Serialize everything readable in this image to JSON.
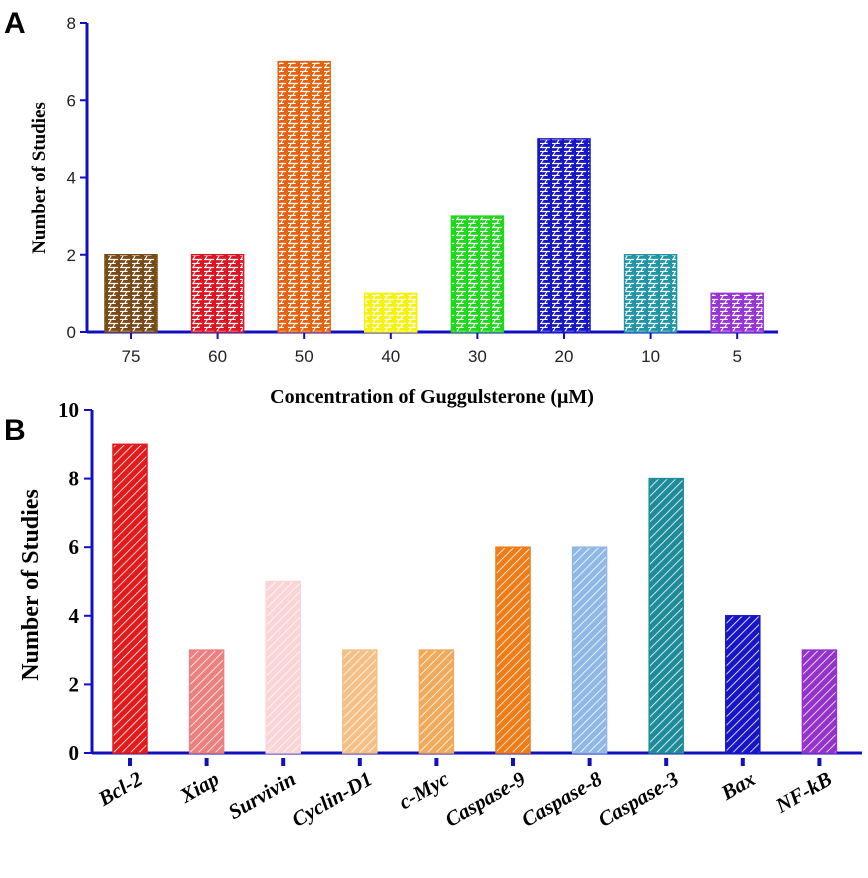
{
  "chart_data": [
    {
      "panel": "A",
      "type": "bar",
      "title": "",
      "xlabel": "Concentration of Guggulsterone (μM)",
      "ylabel": "Number of Studies",
      "categories": [
        "75",
        "60",
        "50",
        "40",
        "30",
        "20",
        "10",
        "5"
      ],
      "values": [
        2,
        2,
        7,
        1,
        3,
        5,
        2,
        1
      ],
      "colors": [
        "#7a4a16",
        "#dd1522",
        "#e8620e",
        "#f7f20a",
        "#1ed81a",
        "#1717c5",
        "#1f95a6",
        "#9933d6"
      ],
      "pattern": "brick",
      "ylim": [
        0,
        8
      ],
      "yticks": [
        0,
        2,
        4,
        6,
        8
      ],
      "axis_color": "#1010c0"
    },
    {
      "panel": "B",
      "type": "bar",
      "title": "",
      "xlabel": "",
      "ylabel": "Number of Studies",
      "categories": [
        "Bcl-2",
        "Xiap",
        "Survivin",
        "Cyclin-D1",
        "c-Myc",
        "Caspase-9",
        "Caspase-8",
        "Caspase-3",
        "Bax",
        "NF-kB"
      ],
      "values": [
        9,
        3,
        5,
        3,
        3,
        6,
        6,
        8,
        4,
        3
      ],
      "colors": [
        "#e31a1c",
        "#ec7f7f",
        "#fbd4d6",
        "#f5bf86",
        "#f1a95a",
        "#ef7c16",
        "#8fb8e6",
        "#1e8c98",
        "#1616c8",
        "#9433cc"
      ],
      "pattern": "diagonal",
      "ylim": [
        0,
        10
      ],
      "yticks": [
        0,
        2,
        4,
        6,
        8,
        10
      ],
      "axis_color": "#1010c0"
    }
  ],
  "panels": {
    "a_label": "A",
    "b_label": "B"
  }
}
